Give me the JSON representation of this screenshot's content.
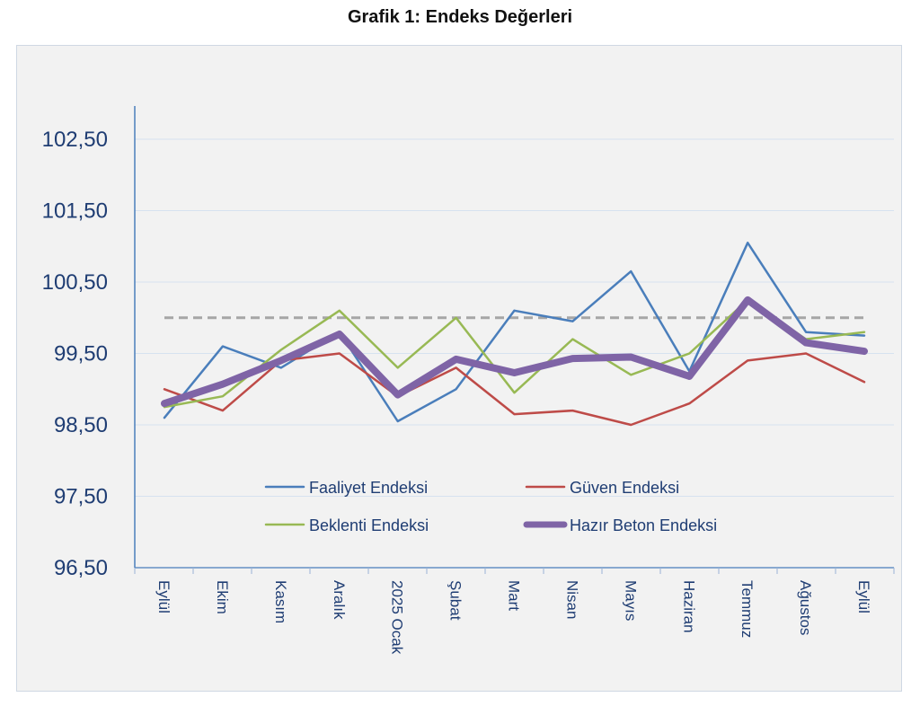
{
  "title": "Grafik 1: Endeks Değerleri",
  "chart_data": {
    "type": "line",
    "categories": [
      "Eylül",
      "Ekim",
      "Kasım",
      "Aralık",
      "2025 Ocak",
      "Şubat",
      "Mart",
      "Nisan",
      "Mayıs",
      "Haziran",
      "Temmuz",
      "Ağustos",
      "Eylül"
    ],
    "yticks": [
      "102,50",
      "101,50",
      "100,50",
      "99,50",
      "98,50",
      "97,50",
      "96,50"
    ],
    "ytick_values": [
      102.5,
      101.5,
      100.5,
      99.5,
      98.5,
      97.5,
      96.5
    ],
    "ylim": [
      96.5,
      102.5
    ],
    "grid": true,
    "reference_line": {
      "value": 100,
      "style": "dashed",
      "color": "#a6a6a6"
    },
    "legend_position": "inside-bottom",
    "series": [
      {
        "name": "Faaliyet Endeksi",
        "color": "#4a7ebb",
        "width": 2.5,
        "values": [
          98.6,
          99.6,
          99.3,
          99.8,
          98.55,
          99.0,
          100.1,
          99.95,
          100.65,
          99.25,
          101.05,
          99.8,
          99.75
        ]
      },
      {
        "name": "Güven Endeksi",
        "color": "#be4b48",
        "width": 2.5,
        "values": [
          99.0,
          98.7,
          99.4,
          99.5,
          98.9,
          99.3,
          98.65,
          98.7,
          98.5,
          98.8,
          99.4,
          99.5,
          99.1
        ]
      },
      {
        "name": "Beklenti Endeksi",
        "color": "#98b954",
        "width": 2.5,
        "values": [
          98.75,
          98.9,
          99.55,
          100.1,
          99.3,
          100.0,
          98.95,
          99.7,
          99.2,
          99.5,
          100.25,
          99.7,
          99.8
        ]
      },
      {
        "name": "Hazır Beton Endeksi",
        "color": "#7f64a6",
        "width": 8,
        "values": [
          98.8,
          99.07,
          99.4,
          99.77,
          98.92,
          99.42,
          99.23,
          99.43,
          99.45,
          99.18,
          100.25,
          99.65,
          99.53
        ]
      }
    ]
  }
}
